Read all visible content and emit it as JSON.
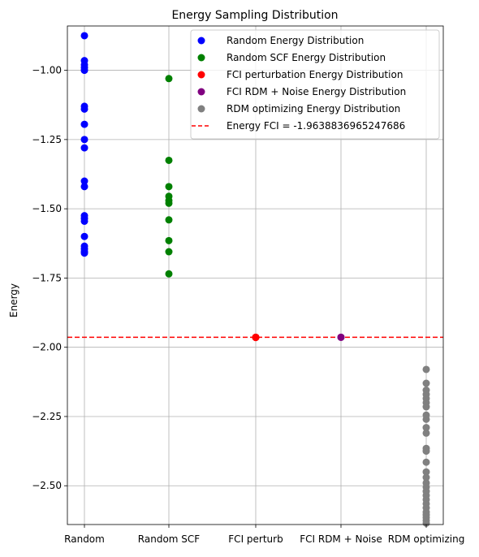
{
  "chart_data": {
    "type": "scatter",
    "title": "Energy Sampling Distribution",
    "xlabel": "",
    "ylabel": "Energy",
    "categories": [
      "Random",
      "Random SCF",
      "FCI perturb",
      "FCI RDM + Noise",
      "RDM optimizing"
    ],
    "yticks": [
      -1.0,
      -1.25,
      -1.5,
      -1.75,
      -2.0,
      -2.25,
      -2.5
    ],
    "ytick_labels": [
      "−1.00",
      "−1.25",
      "−1.50",
      "−1.75",
      "−2.00",
      "−2.25",
      "−2.50"
    ],
    "ylim": [
      -2.64,
      -0.84
    ],
    "grid": true,
    "legend_position": "top-right",
    "series": [
      {
        "name": "Random Energy Distribution",
        "color": "#0000ff",
        "category": "Random",
        "values": [
          -0.875,
          -0.965,
          -0.98,
          -0.99,
          -1.0,
          -1.13,
          -1.14,
          -1.195,
          -1.25,
          -1.28,
          -1.4,
          -1.42,
          -1.525,
          -1.535,
          -1.545,
          -1.6,
          -1.635,
          -1.645,
          -1.655,
          -1.66
        ]
      },
      {
        "name": "Random SCF Energy Distribution",
        "color": "#008000",
        "category": "Random SCF",
        "values": [
          -1.03,
          -1.325,
          -1.42,
          -1.455,
          -1.47,
          -1.48,
          -1.54,
          -1.615,
          -1.655,
          -1.735
        ]
      },
      {
        "name": "FCI perturbation Energy Distribution",
        "color": "#ff0000",
        "category": "FCI perturb",
        "values": [
          -1.9638836965247686,
          -1.964,
          -1.965
        ]
      },
      {
        "name": "FCI RDM + Noise Energy Distribution",
        "color": "#800080",
        "category": "FCI RDM + Noise",
        "values": [
          -1.9638836965247686,
          -1.964
        ]
      },
      {
        "name": "RDM optimizing Energy Distribution",
        "color": "#808080",
        "category": "RDM optimizing",
        "values": [
          -2.08,
          -2.13,
          -2.155,
          -2.17,
          -2.185,
          -2.2,
          -2.215,
          -2.245,
          -2.26,
          -2.29,
          -2.31,
          -2.365,
          -2.375,
          -2.415,
          -2.45,
          -2.47,
          -2.49,
          -2.505,
          -2.52,
          -2.535,
          -2.55,
          -2.565,
          -2.58,
          -2.595,
          -2.605,
          -2.615,
          -2.625,
          -2.635
        ]
      }
    ],
    "reference_line": {
      "label": "Energy FCI = -1.9638836965247686",
      "value": -1.9638836965247686,
      "color": "#ff0000",
      "style": "dashed"
    }
  }
}
